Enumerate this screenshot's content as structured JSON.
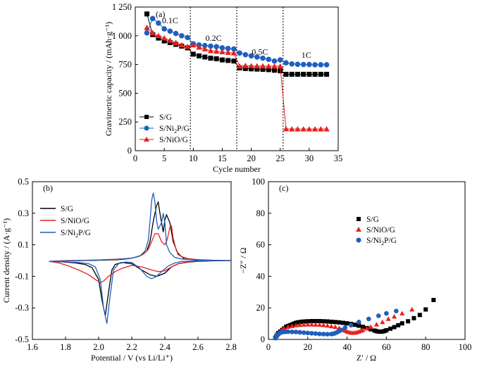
{
  "chart_data": [
    {
      "panel": "(a)",
      "type": "scatter",
      "xlabel": "Cycle number",
      "ylabel": "Gravimetric capacity / (mAh·g⁻¹)",
      "xlim": [
        0,
        35
      ],
      "ylim": [
        0,
        1250
      ],
      "xticks": [
        "0",
        "5",
        "10",
        "15",
        "20",
        "25",
        "30",
        "35"
      ],
      "yticks": [
        "0",
        "250",
        "500",
        "750",
        "1 000",
        "1 250"
      ],
      "rate_labels": [
        {
          "text": "0.1C",
          "x": 6.0,
          "y": 1110
        },
        {
          "text": "0.2C",
          "x": 13.5,
          "y": 955
        },
        {
          "text": "0.5C",
          "x": 21.5,
          "y": 835
        },
        {
          "text": "1C",
          "x": 29.5,
          "y": 810
        }
      ],
      "dividers": [
        9.5,
        17.5,
        25.5
      ],
      "legend_position": "left",
      "x": [
        2,
        3,
        4,
        5,
        6,
        7,
        8,
        9,
        10,
        11,
        12,
        13,
        14,
        15,
        16,
        17,
        18,
        19,
        20,
        21,
        22,
        23,
        24,
        25,
        26,
        27,
        28,
        29,
        30,
        31,
        32,
        33
      ],
      "series": [
        {
          "name": "S/G",
          "color": "#000000",
          "marker": "square",
          "values": [
            1190,
            1010,
            980,
            955,
            940,
            925,
            910,
            895,
            840,
            825,
            815,
            805,
            800,
            790,
            785,
            780,
            720,
            715,
            712,
            710,
            708,
            705,
            700,
            695,
            665,
            665,
            665,
            665,
            665,
            665,
            665,
            665
          ]
        },
        {
          "name": "S/Ni2P/G",
          "color": "#1f5fbf",
          "marker": "circle",
          "values": [
            1025,
            1150,
            1110,
            1060,
            1040,
            1020,
            1000,
            985,
            930,
            920,
            915,
            910,
            905,
            895,
            890,
            885,
            850,
            835,
            825,
            815,
            805,
            795,
            780,
            790,
            765,
            755,
            752,
            750,
            750,
            748,
            748,
            748
          ]
        },
        {
          "name": "S/NiO/G",
          "color": "#e8201c",
          "marker": "triangle",
          "values": [
            1070,
            1025,
            1000,
            980,
            960,
            940,
            920,
            905,
            920,
            900,
            885,
            870,
            865,
            860,
            855,
            850,
            735,
            740,
            738,
            737,
            737,
            735,
            735,
            735,
            190,
            188,
            188,
            188,
            188,
            188,
            188,
            188
          ]
        }
      ]
    },
    {
      "panel": "(b)",
      "type": "line",
      "xlabel": "Potential / V (vs Li/Li⁺)",
      "ylabel": "Current density / (A·g⁻¹)",
      "xlim": [
        1.6,
        2.8
      ],
      "ylim": [
        -0.5,
        0.5
      ],
      "xticks": [
        "1.6",
        "1.8",
        "2.0",
        "2.2",
        "2.4",
        "2.6",
        "2.8"
      ],
      "yticks": [
        "-0.5",
        "-0.3",
        "-0.1",
        "0.1",
        "0.3",
        "0.5"
      ],
      "legend_position": "top-left",
      "series": [
        {
          "name": "S/G",
          "color": "#000000",
          "x": [
            1.7,
            1.78,
            1.86,
            1.92,
            1.96,
            2.0,
            2.02,
            2.04,
            2.06,
            2.08,
            2.1,
            2.14,
            2.2,
            2.26,
            2.31,
            2.35,
            2.4,
            2.44,
            2.48,
            2.54,
            2.6,
            2.7,
            2.8,
            2.7,
            2.6,
            2.52,
            2.48,
            2.45,
            2.43,
            2.41,
            2.4,
            2.39,
            2.37,
            2.36,
            2.35,
            2.33,
            2.31,
            2.29,
            2.26,
            2.22,
            2.18,
            2.12,
            2.0,
            1.9,
            1.8,
            1.7
          ],
          "y": [
            -0.005,
            -0.008,
            -0.015,
            -0.025,
            -0.045,
            -0.12,
            -0.25,
            -0.35,
            -0.2,
            -0.06,
            -0.025,
            -0.012,
            -0.02,
            -0.06,
            -0.09,
            -0.1,
            -0.08,
            -0.04,
            -0.02,
            -0.01,
            -0.005,
            -0.002,
            0.0,
            0.0,
            0.002,
            0.01,
            0.04,
            0.12,
            0.24,
            0.29,
            0.26,
            0.18,
            0.3,
            0.37,
            0.35,
            0.25,
            0.12,
            0.06,
            0.035,
            0.02,
            0.012,
            0.006,
            0.002,
            0.0,
            -0.002,
            -0.005
          ]
        },
        {
          "name": "S/NiO/G",
          "color": "#e8201c",
          "x": [
            1.7,
            1.76,
            1.82,
            1.88,
            1.94,
            1.98,
            2.01,
            2.03,
            2.06,
            2.1,
            2.14,
            2.2,
            2.26,
            2.32,
            2.36,
            2.4,
            2.44,
            2.48,
            2.54,
            2.6,
            2.7,
            2.8,
            2.7,
            2.6,
            2.54,
            2.5,
            2.47,
            2.45,
            2.44,
            2.43,
            2.42,
            2.41,
            2.4,
            2.38,
            2.36,
            2.34,
            2.32,
            2.3,
            2.27,
            2.24,
            2.2,
            2.1,
            2.0,
            1.9,
            1.8,
            1.7
          ],
          "y": [
            -0.005,
            -0.015,
            -0.035,
            -0.06,
            -0.09,
            -0.12,
            -0.14,
            -0.13,
            -0.1,
            -0.07,
            -0.05,
            -0.03,
            -0.04,
            -0.06,
            -0.07,
            -0.065,
            -0.04,
            -0.02,
            -0.008,
            -0.003,
            0.0,
            0.0,
            0.002,
            0.006,
            0.012,
            0.025,
            0.06,
            0.14,
            0.22,
            0.21,
            0.16,
            0.12,
            0.1,
            0.12,
            0.17,
            0.17,
            0.12,
            0.07,
            0.04,
            0.025,
            0.015,
            0.008,
            0.004,
            0.002,
            0.0,
            -0.005
          ]
        },
        {
          "name": "S/Ni2P/G",
          "color": "#1f5fbf",
          "x": [
            1.7,
            1.8,
            1.88,
            1.94,
            1.98,
            2.01,
            2.03,
            2.05,
            2.07,
            2.09,
            2.12,
            2.16,
            2.2,
            2.25,
            2.29,
            2.32,
            2.35,
            2.38,
            2.42,
            2.46,
            2.5,
            2.6,
            2.7,
            2.8,
            2.7,
            2.6,
            2.5,
            2.46,
            2.43,
            2.41,
            2.4,
            2.39,
            2.38,
            2.36,
            2.35,
            2.34,
            2.33,
            2.32,
            2.31,
            2.3,
            2.28,
            2.25,
            2.2,
            2.12,
            2.0,
            1.9,
            1.8,
            1.7
          ],
          "y": [
            -0.005,
            -0.008,
            -0.012,
            -0.02,
            -0.04,
            -0.12,
            -0.3,
            -0.4,
            -0.22,
            -0.06,
            -0.02,
            -0.01,
            -0.012,
            -0.05,
            -0.1,
            -0.115,
            -0.1,
            -0.07,
            -0.035,
            -0.015,
            -0.006,
            -0.002,
            0.0,
            0.0,
            0.002,
            0.004,
            0.01,
            0.02,
            0.05,
            0.1,
            0.24,
            0.3,
            0.24,
            0.2,
            0.25,
            0.37,
            0.43,
            0.38,
            0.25,
            0.13,
            0.06,
            0.03,
            0.015,
            0.008,
            0.003,
            0.0,
            -0.002,
            -0.005
          ]
        }
      ]
    },
    {
      "panel": "(c)",
      "type": "scatter",
      "xlabel": "Z′ / Ω",
      "ylabel": "−Z″ / Ω",
      "xlim": [
        0,
        100
      ],
      "ylim": [
        0,
        100
      ],
      "xticks": [
        "0",
        "20",
        "40",
        "60",
        "80",
        "100"
      ],
      "yticks": [
        "0",
        "20",
        "40",
        "60",
        "80",
        "100"
      ],
      "legend_position": "center-right",
      "series": [
        {
          "name": "S/G",
          "color": "#000000",
          "marker": "square",
          "x": [
            3.5,
            4,
            4.5,
            5,
            6,
            7,
            8,
            9,
            10,
            11,
            12,
            13,
            14,
            15,
            16,
            17,
            18,
            19,
            20,
            22,
            24,
            26,
            28,
            30,
            32,
            34,
            36,
            38,
            40,
            42,
            44,
            46,
            48,
            50,
            52,
            54,
            55,
            56,
            57,
            58,
            59,
            60,
            62,
            64,
            66,
            68,
            71,
            74,
            77,
            80,
            84
          ],
          "y": [
            1,
            2,
            3,
            4,
            5,
            6,
            7,
            8,
            8.5,
            9,
            9.5,
            10,
            10.5,
            10.8,
            11,
            11.2,
            11.3,
            11.4,
            11.5,
            11.6,
            11.6,
            11.6,
            11.5,
            11.4,
            11.2,
            11,
            10.8,
            10.5,
            10.2,
            9.8,
            9.3,
            8.7,
            8,
            7.2,
            6.4,
            5.6,
            5.2,
            5,
            4.9,
            5,
            5.3,
            5.8,
            6.8,
            7.8,
            9,
            10.2,
            11.5,
            13.5,
            15.5,
            19,
            25
          ]
        },
        {
          "name": "S/NiO/G",
          "color": "#e8201c",
          "marker": "triangle",
          "x": [
            3.5,
            4,
            5,
            6,
            7,
            8,
            10,
            12,
            14,
            16,
            18,
            20,
            22,
            24,
            26,
            28,
            30,
            32,
            34,
            36,
            38,
            39,
            40,
            41,
            42,
            43,
            44,
            45,
            46,
            47,
            48,
            50,
            52,
            55,
            58,
            61,
            64,
            68,
            73
          ],
          "y": [
            1,
            2,
            3.5,
            5,
            6,
            7,
            8,
            8.5,
            9,
            9.2,
            9.4,
            9.5,
            9.5,
            9.4,
            9.3,
            9.1,
            8.8,
            8.4,
            7.9,
            7.2,
            6.2,
            5.6,
            5,
            4.6,
            4.3,
            4.2,
            4.3,
            4.6,
            5,
            5.5,
            6,
            7,
            8,
            9.5,
            11,
            13,
            14.5,
            16.5,
            19
          ]
        },
        {
          "name": "S/Ni2P/G",
          "color": "#1f5fbf",
          "marker": "circle",
          "x": [
            3.5,
            4,
            4.5,
            5,
            6,
            7,
            8,
            9,
            10,
            12,
            14,
            16,
            18,
            20,
            22,
            24,
            26,
            28,
            30,
            32,
            33,
            34,
            35,
            36,
            37,
            39,
            42,
            46,
            51,
            56,
            60,
            65
          ],
          "y": [
            0.8,
            1.8,
            2.8,
            3.5,
            4.2,
            4.6,
            4.8,
            4.9,
            4.9,
            4.8,
            4.7,
            4.5,
            4.3,
            4.1,
            3.9,
            3.7,
            3.5,
            3.4,
            3.3,
            3.4,
            3.6,
            4,
            4.6,
            5.3,
            6,
            7.5,
            9,
            11,
            13,
            15,
            16.5,
            18
          ]
        }
      ]
    }
  ]
}
